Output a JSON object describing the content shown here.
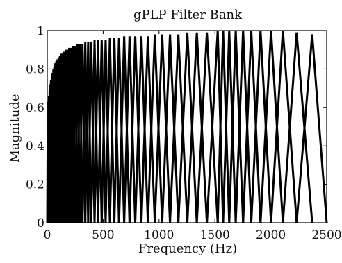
{
  "chart_data": {
    "type": "line",
    "title": "gPLP Filter Bank",
    "xlabel": "Frequency (Hz)",
    "ylabel": "Magnitude",
    "xlim": [
      0,
      2500
    ],
    "ylim": [
      0,
      1
    ],
    "xticks": [
      0,
      500,
      1000,
      1500,
      2000,
      2500
    ],
    "yticks": [
      0,
      0.2,
      0.4,
      0.6,
      0.8,
      1
    ],
    "xtick_labels": [
      "0",
      "500",
      "1000",
      "1500",
      "2000",
      "2500"
    ],
    "ytick_labels": [
      "0",
      "0.2",
      "0.4",
      "0.6",
      "0.8",
      "1"
    ],
    "grid": false,
    "line_color": "#000000",
    "filter_shape": "triangular",
    "num_filters": 60,
    "series": [
      {
        "center_frequencies_hz": [
          5,
          10,
          15,
          21,
          27,
          33,
          40,
          47,
          55,
          63,
          72,
          81,
          91,
          102,
          113,
          125,
          137,
          151,
          165,
          180,
          196,
          213,
          231,
          250,
          271,
          292,
          315,
          340,
          366,
          393,
          423,
          454,
          487,
          522,
          560,
          600,
          642,
          688,
          736,
          787,
          842,
          900,
          962,
          1028,
          1098,
          1173,
          1253,
          1338,
          1428,
          1525,
          1573,
          1628,
          1686,
          1752,
          1825,
          1908,
          2002,
          2108,
          2231,
          2370
        ],
        "peak_magnitudes": [
          0.6,
          0.63,
          0.66,
          0.69,
          0.72,
          0.74,
          0.76,
          0.78,
          0.8,
          0.81,
          0.83,
          0.84,
          0.85,
          0.86,
          0.87,
          0.88,
          0.88,
          0.89,
          0.9,
          0.9,
          0.91,
          0.91,
          0.92,
          0.92,
          0.93,
          0.93,
          0.93,
          0.94,
          0.94,
          0.94,
          0.95,
          0.95,
          0.95,
          0.95,
          0.96,
          0.96,
          0.96,
          0.97,
          0.97,
          0.97,
          0.97,
          0.97,
          0.98,
          0.98,
          0.98,
          0.98,
          0.99,
          0.99,
          0.99,
          1.0,
          1.0,
          1.0,
          1.0,
          1.0,
          1.0,
          1.0,
          1.0,
          1.0,
          0.99,
          0.98
        ]
      }
    ]
  }
}
